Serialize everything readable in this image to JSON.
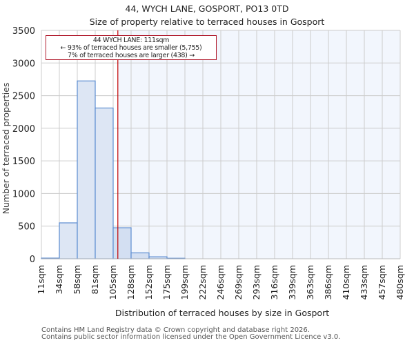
{
  "header": {
    "title": "44, WYCH LANE, GOSPORT, PO13 0TD",
    "subtitle": "Size of property relative to terraced houses in Gosport"
  },
  "annotation": {
    "line1": "44 WYCH LANE: 111sqm",
    "line2": "← 93% of terraced houses are smaller (5,755)",
    "line3": "7% of terraced houses are larger (438) →"
  },
  "footer": {
    "line1": "Contains HM Land Registry data © Crown copyright and database right 2026.",
    "line2": "Contains public sector information licensed under the Open Government Licence v3.0."
  },
  "colors": {
    "bar_fill": "#dde6f4",
    "bar_fill_right": "#d3dff2",
    "bar_edge": "#5b8bd0",
    "marker": "#c00000",
    "bg_left": "#ffffff",
    "bg_right": "#f2f6fd",
    "grid": "#cccccc"
  },
  "chart_data": {
    "type": "bar",
    "title": "44, WYCH LANE, GOSPORT, PO13 0TD — Size of property relative to terraced houses in Gosport",
    "xlabel": "Distribution of terraced houses by size in Gosport",
    "ylabel": "Number of terraced properties",
    "bin_edges": [
      "11sqm",
      "34sqm",
      "58sqm",
      "81sqm",
      "105sqm",
      "128sqm",
      "152sqm",
      "175sqm",
      "199sqm",
      "222sqm",
      "246sqm",
      "269sqm",
      "293sqm",
      "316sqm",
      "339sqm",
      "363sqm",
      "386sqm",
      "410sqm",
      "433sqm",
      "457sqm",
      "480sqm"
    ],
    "categories": [
      "11-34",
      "34-58",
      "58-81",
      "81-105",
      "105-128",
      "128-152",
      "152-175",
      "175-199",
      "199-222",
      "222-246",
      "246-269",
      "269-293",
      "293-316",
      "316-339",
      "339-363",
      "363-386",
      "386-410",
      "410-433",
      "433-457",
      "457-480"
    ],
    "values": [
      10,
      550,
      2725,
      2310,
      475,
      90,
      30,
      8,
      0,
      0,
      0,
      0,
      0,
      0,
      0,
      0,
      0,
      0,
      0,
      0
    ],
    "ylim": [
      0,
      3500
    ],
    "yticks": [
      0,
      500,
      1000,
      1500,
      2000,
      2500,
      3000,
      3500
    ],
    "grid": true,
    "marker": {
      "value_sqm": 111,
      "label": "44 WYCH LANE: 111sqm"
    }
  }
}
